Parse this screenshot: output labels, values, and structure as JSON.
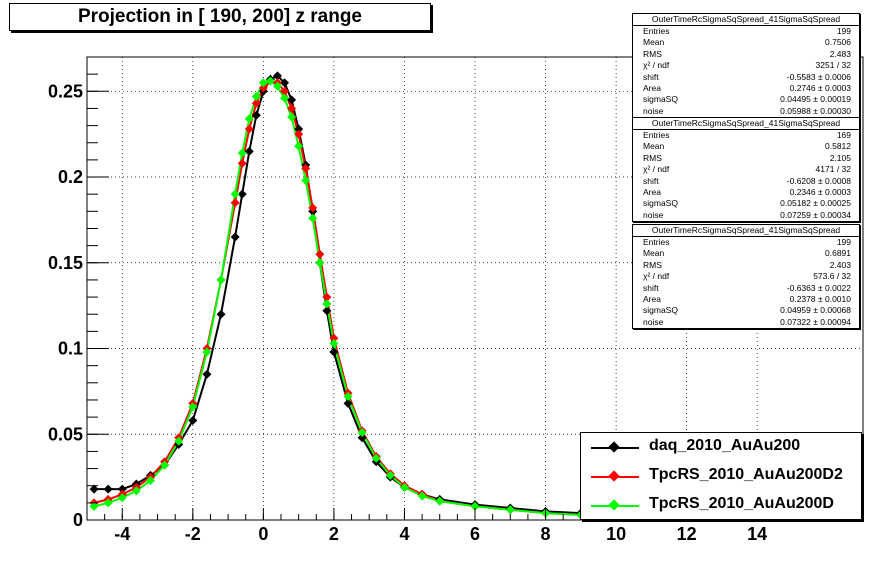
{
  "title": "Projection in [ 190, 200] z range",
  "chart_data": {
    "type": "scatter",
    "xlim": [
      -5,
      17
    ],
    "ylim": [
      0,
      0.27
    ],
    "x_ticks": [
      "-4",
      "-2",
      "0",
      "2",
      "4",
      "6",
      "8",
      "10",
      "12",
      "14"
    ],
    "x_tick_values": [
      -4,
      -2,
      0,
      2,
      4,
      6,
      8,
      10,
      12,
      14
    ],
    "y_ticks": [
      "0",
      "0.05",
      "0.1",
      "0.15",
      "0.2",
      "0.25"
    ],
    "y_tick_values": [
      0,
      0.05,
      0.1,
      0.15,
      0.2,
      0.25
    ],
    "grid": true,
    "legend_position": "bottom-right",
    "series": [
      {
        "name": "daq_2010_AuAu200",
        "color": "#000000",
        "x": [
          -4.8,
          -4.4,
          -4.0,
          -3.6,
          -3.2,
          -2.8,
          -2.4,
          -2.0,
          -1.6,
          -1.2,
          -0.8,
          -0.6,
          -0.4,
          -0.2,
          0.0,
          0.2,
          0.4,
          0.6,
          0.8,
          1.0,
          1.2,
          1.4,
          1.6,
          1.8,
          2.0,
          2.4,
          2.8,
          3.2,
          3.6,
          4.0,
          4.5,
          5.0,
          6.0,
          7.0,
          8.0,
          9.0,
          10.0
        ],
        "y": [
          0.018,
          0.018,
          0.018,
          0.021,
          0.026,
          0.032,
          0.044,
          0.058,
          0.085,
          0.12,
          0.165,
          0.19,
          0.215,
          0.236,
          0.25,
          0.257,
          0.259,
          0.255,
          0.245,
          0.228,
          0.207,
          0.18,
          0.15,
          0.122,
          0.098,
          0.068,
          0.048,
          0.034,
          0.025,
          0.019,
          0.015,
          0.012,
          0.009,
          0.007,
          0.005,
          0.004,
          0.003
        ]
      },
      {
        "name": "TpcRS_2010_AuAu200D2",
        "color": "#ff0000",
        "x": [
          -4.8,
          -4.4,
          -4.0,
          -3.6,
          -3.2,
          -2.8,
          -2.4,
          -2.0,
          -1.6,
          -1.2,
          -0.8,
          -0.6,
          -0.4,
          -0.2,
          0.0,
          0.2,
          0.4,
          0.6,
          0.8,
          1.0,
          1.2,
          1.4,
          1.6,
          1.8,
          2.0,
          2.4,
          2.8,
          3.2,
          3.6,
          4.0,
          4.5,
          5.0,
          6.0,
          7.0,
          8.0,
          9.0,
          10.0
        ],
        "y": [
          0.01,
          0.012,
          0.015,
          0.019,
          0.025,
          0.034,
          0.048,
          0.068,
          0.1,
          0.14,
          0.185,
          0.208,
          0.228,
          0.243,
          0.252,
          0.256,
          0.255,
          0.25,
          0.24,
          0.225,
          0.205,
          0.182,
          0.155,
          0.13,
          0.106,
          0.074,
          0.052,
          0.037,
          0.027,
          0.02,
          0.015,
          0.011,
          0.008,
          0.006,
          0.004,
          0.003,
          0.003
        ]
      },
      {
        "name": "TpcRS_2010_AuAu200D",
        "color": "#00ff00",
        "x": [
          -4.8,
          -4.4,
          -4.0,
          -3.6,
          -3.2,
          -2.8,
          -2.4,
          -2.0,
          -1.6,
          -1.2,
          -0.8,
          -0.6,
          -0.4,
          -0.2,
          0.0,
          0.2,
          0.4,
          0.6,
          0.8,
          1.0,
          1.2,
          1.4,
          1.6,
          1.8,
          2.0,
          2.4,
          2.8,
          3.2,
          3.6,
          4.0,
          4.5,
          5.0,
          6.0,
          7.0,
          8.0,
          9.0,
          10.0
        ],
        "y": [
          0.008,
          0.01,
          0.013,
          0.017,
          0.023,
          0.032,
          0.046,
          0.066,
          0.098,
          0.14,
          0.19,
          0.214,
          0.234,
          0.247,
          0.255,
          0.256,
          0.253,
          0.246,
          0.235,
          0.218,
          0.198,
          0.176,
          0.15,
          0.126,
          0.103,
          0.072,
          0.051,
          0.036,
          0.026,
          0.019,
          0.014,
          0.011,
          0.008,
          0.006,
          0.004,
          0.003,
          0.003
        ]
      }
    ]
  },
  "stat_boxes": [
    {
      "header": "OuterTimeRcSigmaSqSpread_41SigmaSqSpread",
      "rows": [
        {
          "label": "Entries",
          "value": "199"
        },
        {
          "label": "Mean",
          "value": "0.7506"
        },
        {
          "label": "RMS",
          "value": "2.483"
        },
        {
          "label": "χ² / ndf",
          "value": "3251 / 32"
        },
        {
          "label": "shift",
          "value": "-0.5583 ± 0.0006"
        },
        {
          "label": "Area",
          "value": "0.2746 ± 0.0003"
        },
        {
          "label": "sigmaSQ",
          "value": "0.04495 ± 0.00019"
        },
        {
          "label": "noise",
          "value": "0.05988 ± 0.00030"
        }
      ]
    },
    {
      "header": "OuterTimeRcSigmaSqSpread_41SigmaSqSpread",
      "rows": [
        {
          "label": "Entries",
          "value": "169"
        },
        {
          "label": "Mean",
          "value": "0.5812"
        },
        {
          "label": "RMS",
          "value": "2.105"
        },
        {
          "label": "χ² / ndf",
          "value": "4171 / 32"
        },
        {
          "label": "shift",
          "value": "-0.6208 ± 0.0008"
        },
        {
          "label": "Area",
          "value": "0.2346 ± 0.0003"
        },
        {
          "label": "sigmaSQ",
          "value": "0.05182 ± 0.00025"
        },
        {
          "label": "noise",
          "value": "0.07259 ± 0.00034"
        }
      ]
    },
    {
      "header": "OuterTimeRcSigmaSqSpread_41SigmaSqSpread",
      "rows": [
        {
          "label": "Entries",
          "value": "199"
        },
        {
          "label": "Mean",
          "value": "0.6891"
        },
        {
          "label": "RMS",
          "value": "2.403"
        },
        {
          "label": "χ² / ndf",
          "value": "573.6 / 32"
        },
        {
          "label": "shift",
          "value": "-0.6363 ± 0.0022"
        },
        {
          "label": "Area",
          "value": "0.2378 ± 0.0010"
        },
        {
          "label": "sigmaSQ",
          "value": "0.04959 ± 0.00068"
        },
        {
          "label": "noise",
          "value": "0.07322 ± 0.00094"
        }
      ]
    }
  ],
  "legend": {
    "entries": [
      {
        "label": "daq_2010_AuAu200",
        "color": "#000000"
      },
      {
        "label": "TpcRS_2010_AuAu200D2",
        "color": "#ff0000"
      },
      {
        "label": "TpcRS_2010_AuAu200D",
        "color": "#00ff00"
      }
    ]
  }
}
